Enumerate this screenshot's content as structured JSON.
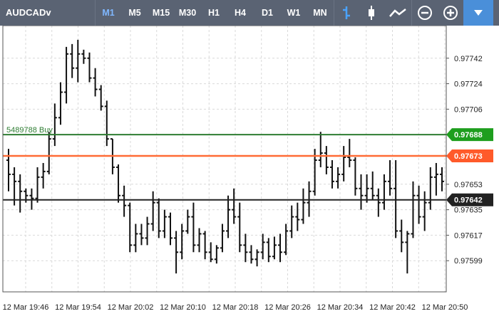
{
  "toolbar": {
    "symbol": "AUDCADv",
    "timeframes": [
      "M1",
      "M5",
      "M15",
      "M30",
      "H1",
      "H4",
      "D1",
      "W1",
      "MN"
    ],
    "active_timeframe": "M1"
  },
  "colors": {
    "toolbar_bg": "#5a6373",
    "active_tf": "#7fb7ff",
    "buy_line": "#2e7d32",
    "buy_tag": "#1e9e1e",
    "ask_line": "#ff6b35",
    "ask_tag": "#ff5a2a",
    "bid_line": "#222222",
    "bid_tag": "#222222",
    "grid": "#d9d9d9",
    "bars": "#111111"
  },
  "chart_data": {
    "type": "ohlc",
    "y_ticks": [
      "0.97742",
      "0.97724",
      "0.97706",
      "0.97653",
      "0.97635",
      "0.97617",
      "0.97599"
    ],
    "y_tick_values": [
      0.97742,
      0.97724,
      0.97706,
      0.97653,
      0.97635,
      0.97617,
      0.97599
    ],
    "ylim": [
      0.97577,
      0.97765
    ],
    "x_ticks": [
      "12 Mar 19:46",
      "12 Mar 19:54",
      "12 Mar 20:02",
      "12 Mar 20:10",
      "12 Mar 20:18",
      "12 Mar 20:26",
      "12 Mar 20:34",
      "12 Mar 20:42",
      "12 Mar 20:50"
    ],
    "price_lines": [
      {
        "name": "buy",
        "label": "5489788 Buy",
        "price": 0.97688,
        "price_label": "0.97688"
      },
      {
        "name": "ask",
        "label": "",
        "price": 0.97673,
        "price_label": "0.97673"
      },
      {
        "name": "bid",
        "label": "",
        "price": 0.97642,
        "price_label": "0.97642"
      }
    ],
    "bars": [
      [
        0.9767,
        0.97678,
        0.97648,
        0.9766
      ],
      [
        0.9766,
        0.97665,
        0.97638,
        0.97655
      ],
      [
        0.97655,
        0.9766,
        0.97633,
        0.97648
      ],
      [
        0.97648,
        0.9765,
        0.9764,
        0.97645
      ],
      [
        0.97645,
        0.9765,
        0.97635,
        0.97643
      ],
      [
        0.97643,
        0.97665,
        0.9764,
        0.97658
      ],
      [
        0.97658,
        0.97668,
        0.9765,
        0.97662
      ],
      [
        0.97662,
        0.9769,
        0.9766,
        0.97685
      ],
      [
        0.97685,
        0.9771,
        0.9768,
        0.977
      ],
      [
        0.977,
        0.97725,
        0.97695,
        0.97718
      ],
      [
        0.97718,
        0.9775,
        0.9771,
        0.97745
      ],
      [
        0.97745,
        0.97752,
        0.97728,
        0.97735
      ],
      [
        0.97735,
        0.97755,
        0.97725,
        0.97745
      ],
      [
        0.97745,
        0.97748,
        0.97738,
        0.97742
      ],
      [
        0.97742,
        0.97746,
        0.97725,
        0.97728
      ],
      [
        0.97728,
        0.97735,
        0.97715,
        0.9772
      ],
      [
        0.9772,
        0.97723,
        0.97705,
        0.97708
      ],
      [
        0.97708,
        0.97712,
        0.9768,
        0.97685
      ],
      [
        0.97685,
        0.97685,
        0.9766,
        0.97665
      ],
      [
        0.97665,
        0.97667,
        0.9764,
        0.97645
      ],
      [
        0.97645,
        0.97652,
        0.9763,
        0.97638
      ],
      [
        0.97638,
        0.9764,
        0.97605,
        0.9761
      ],
      [
        0.9761,
        0.97625,
        0.97605,
        0.97618
      ],
      [
        0.97618,
        0.97625,
        0.9761,
        0.97615
      ],
      [
        0.97615,
        0.9763,
        0.9761,
        0.97625
      ],
      [
        0.97625,
        0.97648,
        0.9762,
        0.9764
      ],
      [
        0.9764,
        0.97643,
        0.97615,
        0.9762
      ],
      [
        0.9762,
        0.97635,
        0.97615,
        0.9763
      ],
      [
        0.9763,
        0.97633,
        0.9761,
        0.97615
      ],
      [
        0.97615,
        0.9762,
        0.9759,
        0.97605
      ],
      [
        0.97605,
        0.97625,
        0.976,
        0.9762
      ],
      [
        0.9762,
        0.97635,
        0.97618,
        0.9763
      ],
      [
        0.9763,
        0.9764,
        0.97605,
        0.9761
      ],
      [
        0.9761,
        0.97622,
        0.97605,
        0.97618
      ],
      [
        0.97618,
        0.9762,
        0.976,
        0.97605
      ],
      [
        0.97605,
        0.97612,
        0.97598,
        0.976
      ],
      [
        0.976,
        0.9761,
        0.97597,
        0.97608
      ],
      [
        0.97608,
        0.97625,
        0.97605,
        0.9762
      ],
      [
        0.9762,
        0.97645,
        0.97615,
        0.97635
      ],
      [
        0.97635,
        0.9765,
        0.97625,
        0.9763
      ],
      [
        0.9763,
        0.9764,
        0.97605,
        0.9761
      ],
      [
        0.9761,
        0.97618,
        0.97598,
        0.97605
      ],
      [
        0.97605,
        0.9761,
        0.97597,
        0.976
      ],
      [
        0.976,
        0.97607,
        0.97595,
        0.97605
      ],
      [
        0.97605,
        0.97618,
        0.976,
        0.97612
      ],
      [
        0.97612,
        0.97615,
        0.97598,
        0.97602
      ],
      [
        0.97602,
        0.97616,
        0.976,
        0.9761
      ],
      [
        0.9761,
        0.97618,
        0.97598,
        0.97605
      ],
      [
        0.97605,
        0.97625,
        0.97603,
        0.9762
      ],
      [
        0.9762,
        0.97638,
        0.97615,
        0.9763
      ],
      [
        0.9763,
        0.9764,
        0.9762,
        0.97628
      ],
      [
        0.97628,
        0.9765,
        0.97625,
        0.9764
      ],
      [
        0.9764,
        0.97655,
        0.9763,
        0.97648
      ],
      [
        0.97648,
        0.97678,
        0.97645,
        0.9767
      ],
      [
        0.9767,
        0.9769,
        0.97665,
        0.97675
      ],
      [
        0.97675,
        0.9768,
        0.9766,
        0.97665
      ],
      [
        0.97665,
        0.9767,
        0.9765,
        0.97655
      ],
      [
        0.97655,
        0.97665,
        0.9765,
        0.9766
      ],
      [
        0.9766,
        0.9768,
        0.97655,
        0.97672
      ],
      [
        0.97672,
        0.97685,
        0.97665,
        0.9767
      ],
      [
        0.9767,
        0.97672,
        0.97645,
        0.9765
      ],
      [
        0.9765,
        0.9766,
        0.97635,
        0.97645
      ],
      [
        0.97645,
        0.9766,
        0.9764,
        0.9765
      ],
      [
        0.9765,
        0.97662,
        0.97642,
        0.97645
      ],
      [
        0.97645,
        0.9765,
        0.9763,
        0.9764
      ],
      [
        0.9764,
        0.9766,
        0.97635,
        0.97655
      ],
      [
        0.97655,
        0.9767,
        0.97645,
        0.9765
      ],
      [
        0.9765,
        0.9767,
        0.97615,
        0.9762
      ],
      [
        0.9762,
        0.97628,
        0.97605,
        0.97612
      ],
      [
        0.97612,
        0.9762,
        0.9759,
        0.97618
      ],
      [
        0.97618,
        0.97655,
        0.97615,
        0.97645
      ],
      [
        0.97645,
        0.97652,
        0.97625,
        0.9763
      ],
      [
        0.9763,
        0.97648,
        0.9762,
        0.9764
      ],
      [
        0.9764,
        0.97665,
        0.97635,
        0.97658
      ],
      [
        0.97658,
        0.97668,
        0.97645,
        0.9766
      ],
      [
        0.9766,
        0.97665,
        0.97648,
        0.97655
      ]
    ]
  }
}
